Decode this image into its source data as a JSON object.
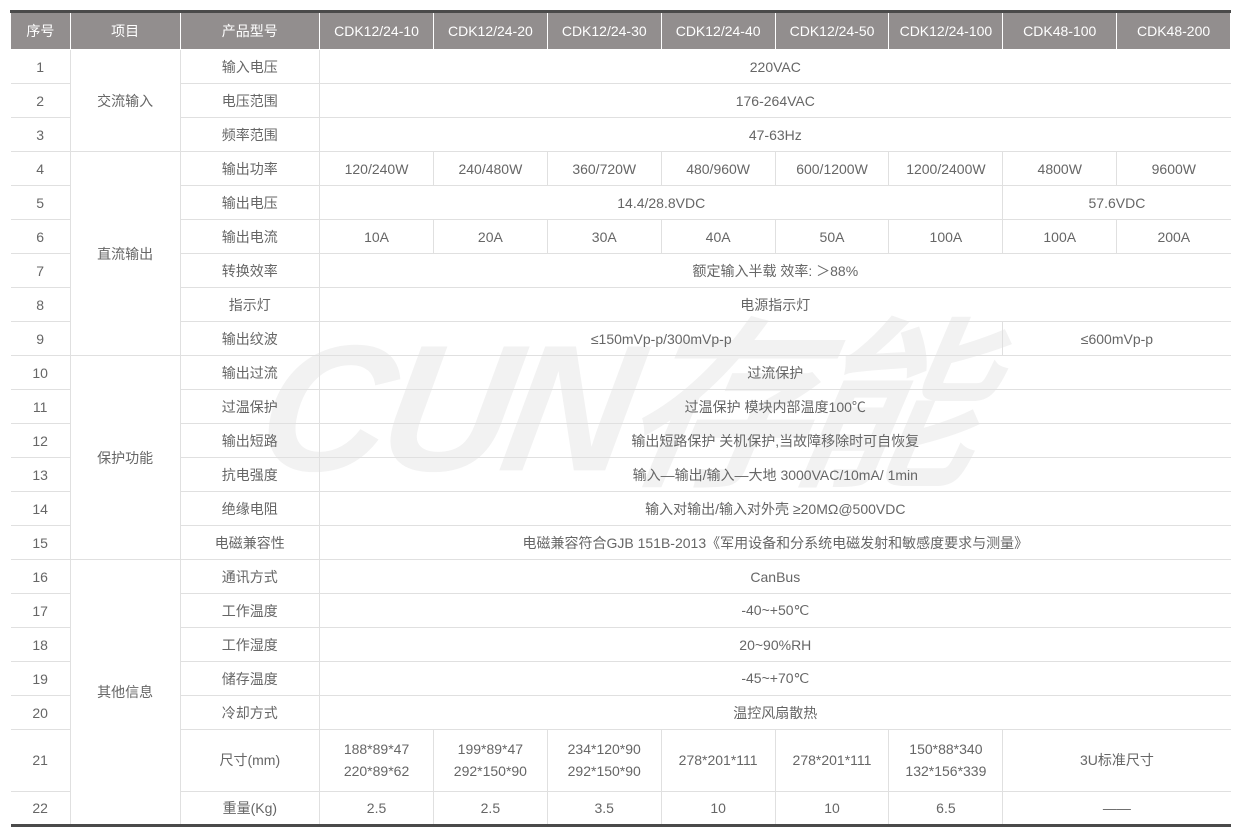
{
  "colors": {
    "header_bg": "#928e8e",
    "header_text": "#ffffff",
    "cell_text": "#666666",
    "border": "#e0e0e0",
    "table_border": "#4a4a4a",
    "watermark": "#f2f2f2"
  },
  "headers": {
    "seq": "序号",
    "category": "项目",
    "property": "产品型号",
    "m1": "CDK12/24-10",
    "m2": "CDK12/24-20",
    "m3": "CDK12/24-30",
    "m4": "CDK12/24-40",
    "m5": "CDK12/24-50",
    "m6": "CDK12/24-100",
    "m7": "CDK48-100",
    "m8": "CDK48-200"
  },
  "cat": {
    "ac_input": "交流输入",
    "dc_output": "直流输出",
    "protection": "保护功能",
    "other": "其他信息"
  },
  "rows": {
    "r1": {
      "seq": "1",
      "prop": "输入电压",
      "val": "220VAC"
    },
    "r2": {
      "seq": "2",
      "prop": "电压范围",
      "val": "176-264VAC"
    },
    "r3": {
      "seq": "3",
      "prop": "频率范围",
      "val": "47-63Hz"
    },
    "r4": {
      "seq": "4",
      "prop": "输出功率",
      "v1": "120/240W",
      "v2": "240/480W",
      "v3": "360/720W",
      "v4": "480/960W",
      "v5": "600/1200W",
      "v6": "1200/2400W",
      "v7": "4800W",
      "v8": "9600W"
    },
    "r5": {
      "seq": "5",
      "prop": "输出电压",
      "va": "14.4/28.8VDC",
      "vb": "57.6VDC"
    },
    "r6": {
      "seq": "6",
      "prop": "输出电流",
      "v1": "10A",
      "v2": "20A",
      "v3": "30A",
      "v4": "40A",
      "v5": "50A",
      "v6": "100A",
      "v7": "100A",
      "v8": "200A"
    },
    "r7": {
      "seq": "7",
      "prop": "转换效率",
      "val": "额定输入半载  效率: ＞88%"
    },
    "r8": {
      "seq": "8",
      "prop": "指示灯",
      "val": "电源指示灯"
    },
    "r9": {
      "seq": "9",
      "prop": "输出纹波",
      "va": "≤150mVp-p/300mVp-p",
      "vb": "≤600mVp-p"
    },
    "r10": {
      "seq": "10",
      "prop": "输出过流",
      "val": "过流保护"
    },
    "r11": {
      "seq": "11",
      "prop": "过温保护",
      "val": "过温保护  模块内部温度100℃"
    },
    "r12": {
      "seq": "12",
      "prop": "输出短路",
      "val": "输出短路保护  关机保护,当故障移除时可自恢复"
    },
    "r13": {
      "seq": "13",
      "prop": "抗电强度",
      "val": "输入—输出/输入—大地 3000VAC/10mA/ 1min"
    },
    "r14": {
      "seq": "14",
      "prop": "绝缘电阻",
      "val": "输入对输出/输入对外壳 ≥20MΩ@500VDC"
    },
    "r15": {
      "seq": "15",
      "prop": "电磁兼容性",
      "val": "电磁兼容符合GJB 151B-2013《军用设备和分系统电磁发射和敏感度要求与测量》"
    },
    "r16": {
      "seq": "16",
      "prop": "通讯方式",
      "val": "CanBus"
    },
    "r17": {
      "seq": "17",
      "prop": "工作温度",
      "val": "-40~+50℃"
    },
    "r18": {
      "seq": "18",
      "prop": "工作湿度",
      "val": "20~90%RH"
    },
    "r19": {
      "seq": "19",
      "prop": "储存温度",
      "val": "-45~+70℃"
    },
    "r20": {
      "seq": "20",
      "prop": "冷却方式",
      "val": "温控风扇散热"
    },
    "r21": {
      "seq": "21",
      "prop": "尺寸(mm)",
      "v1a": "188*89*47",
      "v1b": "220*89*62",
      "v2a": "199*89*47",
      "v2b": "292*150*90",
      "v3a": "234*120*90",
      "v3b": "292*150*90",
      "v4": "278*201*111",
      "v5": "278*201*111",
      "v6a": "150*88*340",
      "v6b": "132*156*339",
      "v78": "3U标准尺寸"
    },
    "r22": {
      "seq": "22",
      "prop": "重量(Kg)",
      "v1": "2.5",
      "v2": "2.5",
      "v3": "3.5",
      "v4": "10",
      "v5": "10",
      "v6": "6.5",
      "v78": "——"
    }
  }
}
